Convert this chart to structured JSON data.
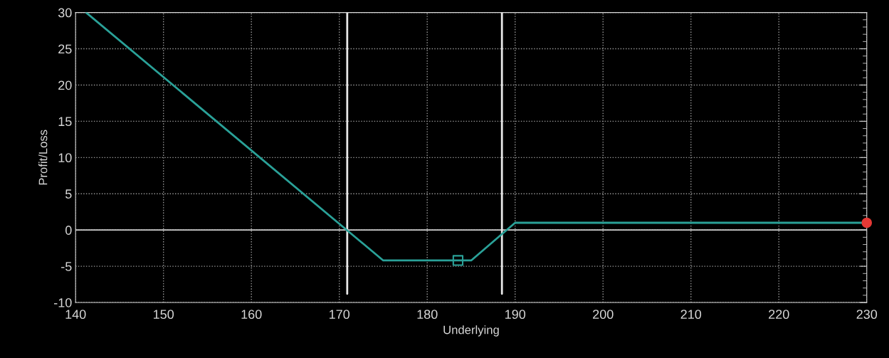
{
  "chart_data": {
    "type": "line",
    "xlabel": "Underlying",
    "ylabel": "Profit/Loss",
    "xlim": [
      140,
      230
    ],
    "xticks": [
      140,
      150,
      160,
      170,
      180,
      190,
      200,
      210,
      220,
      230
    ],
    "ylim": [
      -10,
      30
    ],
    "yticks": [
      -10,
      -5,
      0,
      5,
      10,
      15,
      20,
      25,
      30
    ],
    "grid": true,
    "series": [
      {
        "color": "#2aa198",
        "x": [
          141.2,
          175,
          185,
          190,
          230
        ],
        "values": [
          30,
          -4.2,
          -4.2,
          1,
          1
        ]
      },
      {
        "type": "scatter",
        "marker": "square",
        "color": "#2aa198",
        "x": [
          183.5
        ],
        "values": [
          -4.2
        ]
      },
      {
        "type": "scatter",
        "marker": "circle",
        "color": "#e53935",
        "x": [
          230
        ],
        "values": [
          1
        ]
      }
    ],
    "ref_lines": [
      {
        "axis": "y",
        "value": 0,
        "color": "#d0d0d0"
      },
      {
        "axis": "x",
        "value": 170.9,
        "color": "#e8e8e8"
      },
      {
        "axis": "x",
        "value": 188.5,
        "color": "#e8e8e8"
      }
    ]
  }
}
